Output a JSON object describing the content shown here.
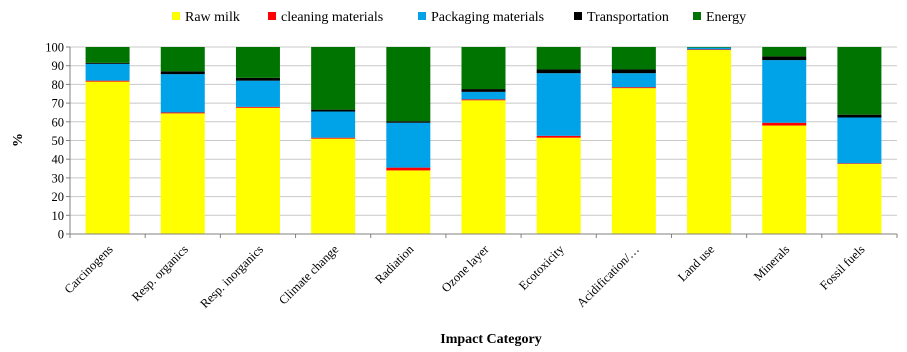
{
  "chart_data": {
    "type": "bar",
    "stacked": true,
    "title": "",
    "xlabel": "Impact Category",
    "ylabel": "%",
    "ylim": [
      0,
      100
    ],
    "yticks": [
      "0",
      "10",
      "20",
      "30",
      "40",
      "50",
      "60",
      "70",
      "80",
      "90",
      "100"
    ],
    "grid": "horizontal",
    "legend_position": "top",
    "categories": [
      "Carcinogens",
      "Resp. organics",
      "Resp. inorganics",
      "Climate change",
      "Radiation",
      "Ozone layer",
      "Ecotoxicity",
      "Acidification/…",
      "Land use",
      "Minerals",
      "Fossil fuels"
    ],
    "series": [
      {
        "name": "Raw milk",
        "color": "#ffff00",
        "values": [
          81.5,
          64.5,
          67.5,
          51,
          34,
          71.5,
          51.5,
          78,
          98.5,
          58,
          37.5
        ]
      },
      {
        "name": "cleaning materials",
        "color": "#ff0000",
        "values": [
          0.5,
          0.5,
          0.5,
          0.5,
          1.5,
          0.5,
          1.0,
          0.5,
          0.2,
          1.5,
          0.3
        ]
      },
      {
        "name": "Packaging materials",
        "color": "#00a2e8",
        "values": [
          9,
          20.5,
          14,
          14,
          24,
          4,
          33.5,
          7.5,
          1.0,
          33.5,
          24.5
        ]
      },
      {
        "name": "Transportation",
        "color": "#000000",
        "values": [
          0.5,
          1.5,
          1.5,
          1.0,
          0.8,
          1.5,
          2.0,
          2.0,
          0,
          2.0,
          1.5
        ]
      },
      {
        "name": "Energy",
        "color": "#007400",
        "values": [
          8.5,
          13,
          16.5,
          33.5,
          39.7,
          22.5,
          12,
          12,
          0.3,
          5,
          36.2
        ]
      }
    ]
  }
}
